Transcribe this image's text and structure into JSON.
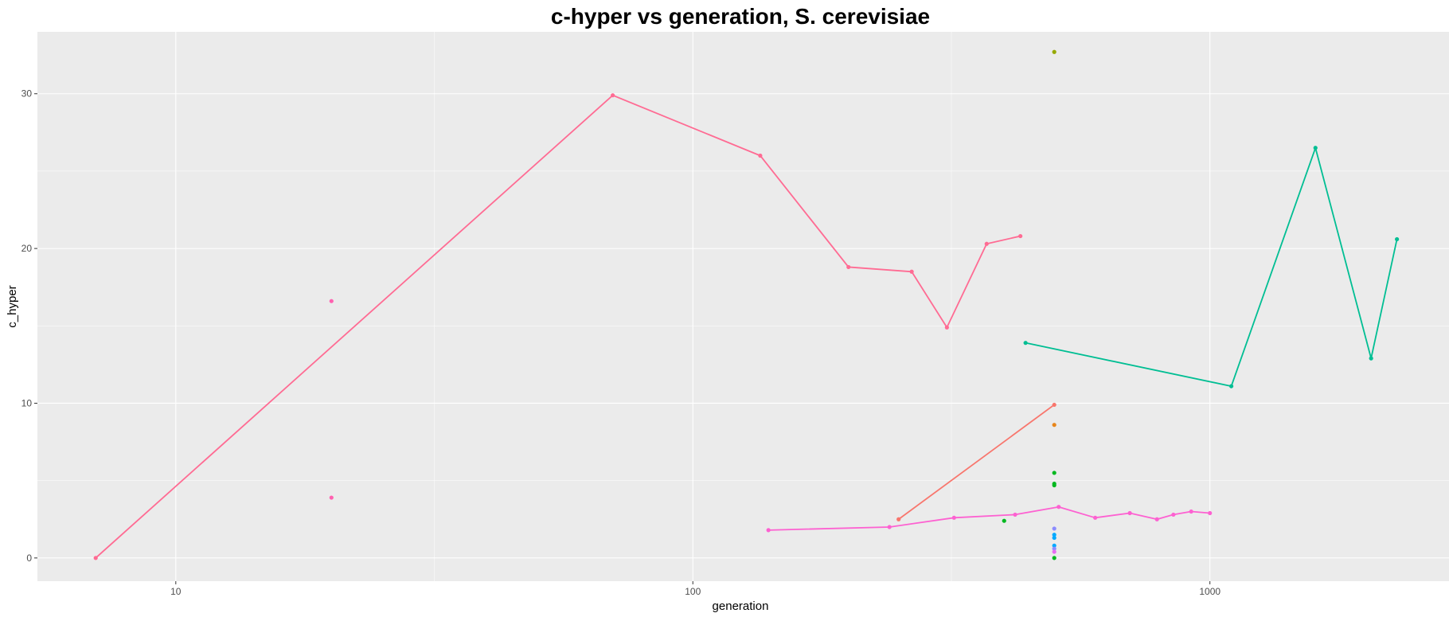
{
  "chart_data": {
    "type": "scatter",
    "title": "c-hyper vs generation, S. cerevisiae",
    "xlabel": "generation",
    "ylabel": "c_hyper",
    "x_scale": "log10",
    "xlim": [
      5.4,
      2900
    ],
    "ylim": [
      -1.5,
      34
    ],
    "x_ticks": [
      10,
      100,
      1000
    ],
    "x_tick_labels": [
      "10",
      "100",
      "1000"
    ],
    "y_ticks": [
      0,
      10,
      20,
      30
    ],
    "y_tick_labels": [
      "0",
      "10",
      "20",
      "30"
    ],
    "grid": true,
    "legend": "none",
    "series": [
      {
        "mode": "lines+markers",
        "color": "#f8766d",
        "x": [
          250,
          500
        ],
        "y": [
          2.5,
          9.9
        ]
      },
      {
        "mode": "markers",
        "color": "#e7861b",
        "x": [
          500
        ],
        "y": [
          8.6
        ]
      },
      {
        "mode": "markers",
        "color": "#95a900",
        "x": [
          500
        ],
        "y": [
          32.7
        ]
      },
      {
        "mode": "markers",
        "color": "#00b81f",
        "x": [
          400,
          500,
          500,
          500,
          500
        ],
        "y": [
          2.4,
          5.5,
          4.8,
          4.7,
          0.0
        ]
      },
      {
        "mode": "lines+markers",
        "color": "#00be93",
        "x": [
          440,
          1100,
          1600,
          2050,
          2300
        ],
        "y": [
          13.9,
          11.1,
          26.5,
          12.9,
          20.6
        ]
      },
      {
        "mode": "markers",
        "color": "#00a9ff",
        "x": [
          500,
          500,
          500
        ],
        "y": [
          1.5,
          1.3,
          0.8
        ]
      },
      {
        "mode": "markers",
        "color": "#8c8cff",
        "x": [
          500,
          500
        ],
        "y": [
          1.9,
          0.6
        ]
      },
      {
        "mode": "markers",
        "color": "#e76bf3",
        "x": [
          500
        ],
        "y": [
          0.4
        ]
      },
      {
        "mode": "lines+markers",
        "color": "#fd61d1",
        "x": [
          140,
          240,
          320,
          420,
          510,
          600,
          700,
          790,
          850,
          920,
          1000
        ],
        "y": [
          1.8,
          2.0,
          2.6,
          2.8,
          3.3,
          2.6,
          2.9,
          2.5,
          2.8,
          3.0,
          2.9
        ]
      },
      {
        "mode": "markers",
        "color": "#ff61b0",
        "x": [
          20,
          20
        ],
        "y": [
          16.6,
          3.9
        ]
      },
      {
        "mode": "lines+markers",
        "color": "#ff6b93",
        "x": [
          7,
          70,
          135,
          200,
          265,
          310,
          370,
          430
        ],
        "y": [
          0.0,
          29.9,
          26.0,
          18.8,
          18.5,
          14.9,
          20.3,
          20.8
        ]
      }
    ]
  }
}
